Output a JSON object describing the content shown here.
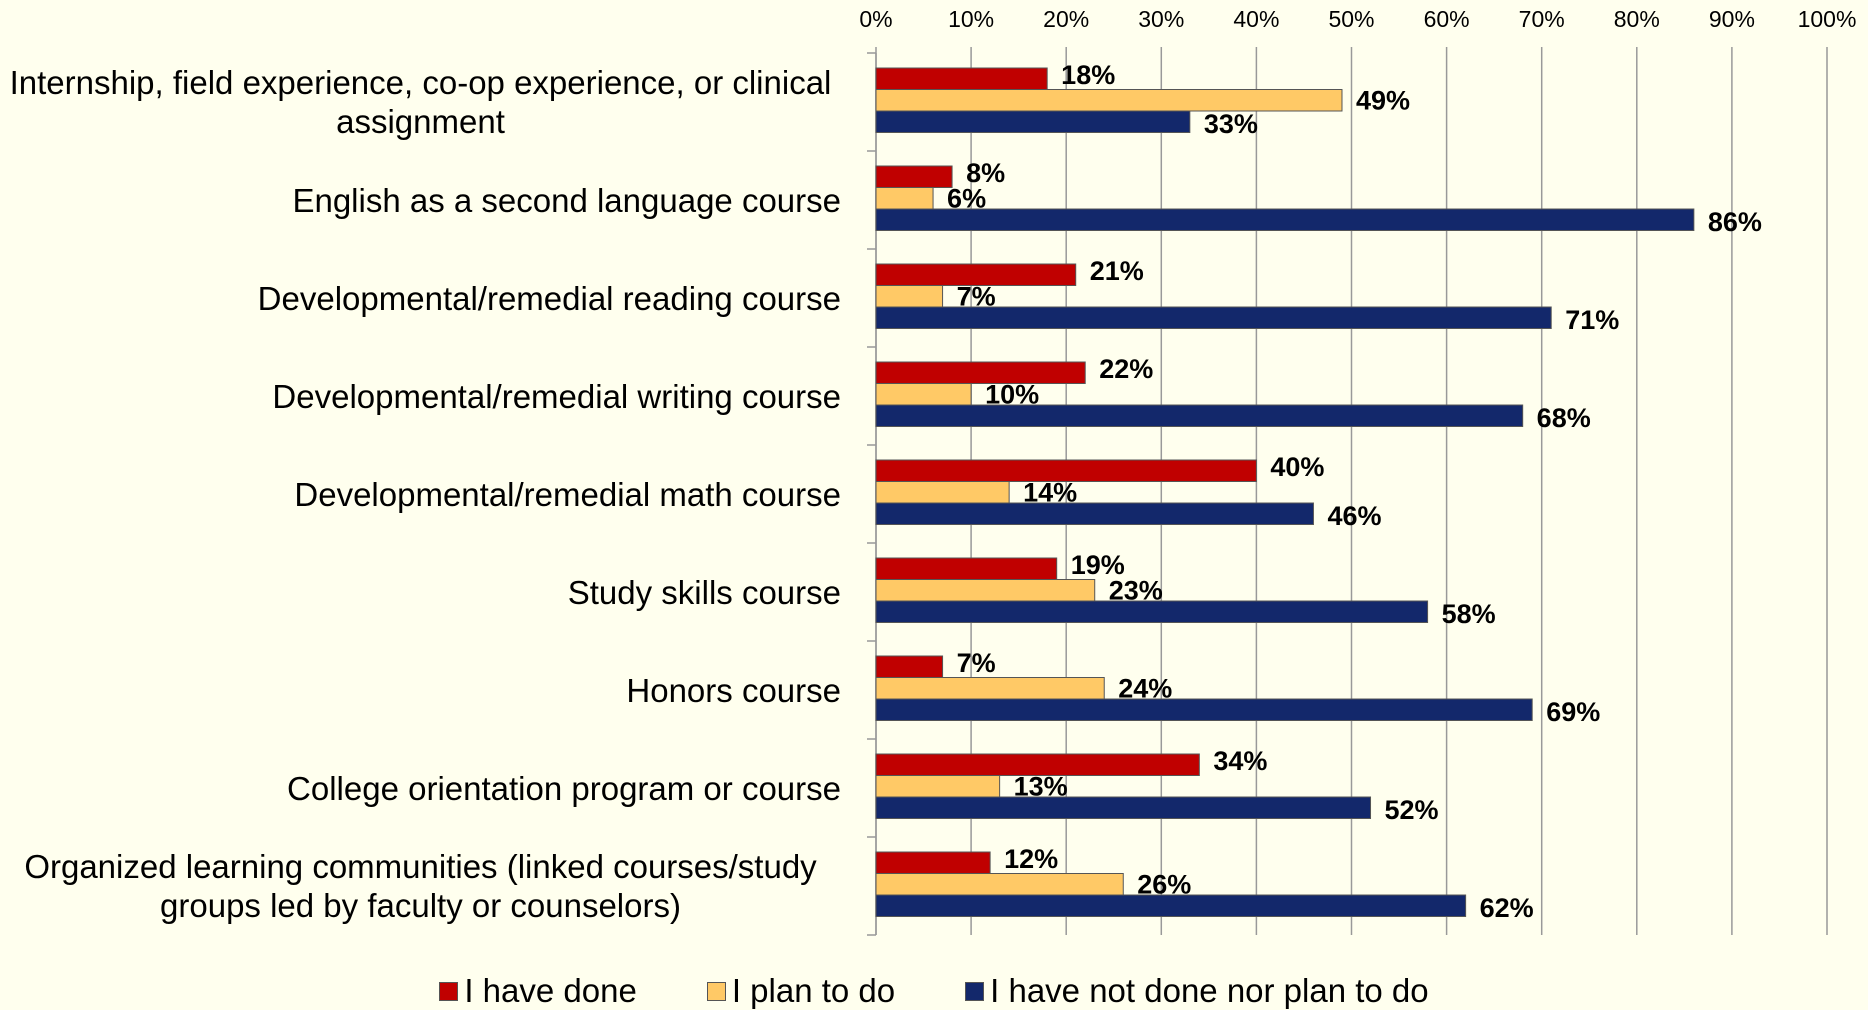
{
  "chart_data": {
    "type": "bar",
    "orientation": "horizontal",
    "categories": [
      "Internship, field experience, co-op experience, or clinical assignment",
      "English as a second language course",
      "Developmental/remedial reading course",
      "Developmental/remedial writing course",
      "Developmental/remedial math course",
      "Study skills course",
      "Honors course",
      "College orientation program or course",
      "Organized learning communities (linked courses/study groups led by faculty or counselors)"
    ],
    "series": [
      {
        "name": "I have done",
        "color": "#C00000",
        "values": [
          18,
          8,
          21,
          22,
          40,
          19,
          7,
          34,
          12
        ],
        "value_labels": [
          "18%",
          "8%",
          "21%",
          "22%",
          "40%",
          "19%",
          "7%",
          "34%",
          "12%"
        ]
      },
      {
        "name": "I plan to do",
        "color": "#FFC966",
        "values": [
          49,
          6,
          7,
          10,
          14,
          23,
          24,
          13,
          26
        ],
        "value_labels": [
          "49%",
          "6%",
          "7%",
          "10%",
          "14%",
          "23%",
          "24%",
          "13%",
          "26%"
        ]
      },
      {
        "name": "I have not done nor plan to do",
        "color": "#13286B",
        "values": [
          33,
          86,
          71,
          68,
          46,
          58,
          69,
          52,
          62
        ],
        "value_labels": [
          "33%",
          "86%",
          "71%",
          "68%",
          "46%",
          "58%",
          "69%",
          "52%",
          "62%"
        ]
      }
    ],
    "xlim": [
      0,
      100
    ],
    "xticks": [
      {
        "value": 0,
        "label": "0%"
      },
      {
        "value": 10,
        "label": "10%"
      },
      {
        "value": 20,
        "label": "20%"
      },
      {
        "value": 30,
        "label": "30%"
      },
      {
        "value": 40,
        "label": "40%"
      },
      {
        "value": 50,
        "label": "50%"
      },
      {
        "value": 60,
        "label": "60%"
      },
      {
        "value": 70,
        "label": "70%"
      },
      {
        "value": 80,
        "label": "80%"
      },
      {
        "value": 90,
        "label": "90%"
      },
      {
        "value": 100,
        "label": "100%"
      }
    ],
    "grid": true,
    "legend": "bottom"
  }
}
